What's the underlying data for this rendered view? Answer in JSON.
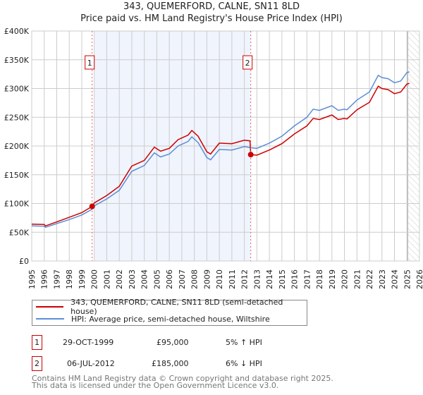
{
  "header": {
    "title": "343, QUEMERFORD, CALNE, SN11 8LD",
    "subtitle": "Price paid vs. HM Land Registry's House Price Index (HPI)"
  },
  "chart_data": {
    "type": "line",
    "xlim": [
      1995,
      2026
    ],
    "ylim": [
      0,
      400000
    ],
    "x_ticks": [
      "1995",
      "1996",
      "1997",
      "1998",
      "1999",
      "2000",
      "2001",
      "2002",
      "2003",
      "2004",
      "2005",
      "2006",
      "2007",
      "2008",
      "2009",
      "2010",
      "2011",
      "2012",
      "2013",
      "2014",
      "2015",
      "2016",
      "2017",
      "2018",
      "2019",
      "2020",
      "2021",
      "2022",
      "2023",
      "2024",
      "2025",
      "2026"
    ],
    "y_ticks": [
      {
        "value": 0,
        "label": "£0"
      },
      {
        "value": 50000,
        "label": "£50K"
      },
      {
        "value": 100000,
        "label": "£100K"
      },
      {
        "value": 150000,
        "label": "£150K"
      },
      {
        "value": 200000,
        "label": "£200K"
      },
      {
        "value": 250000,
        "label": "£250K"
      },
      {
        "value": 300000,
        "label": "£300K"
      },
      {
        "value": 350000,
        "label": "£350K"
      },
      {
        "value": 400000,
        "label": "£400K"
      }
    ],
    "grid": true,
    "shaded_period": [
      2000.0,
      2012.5
    ],
    "future_hatch_from": 2025.05,
    "series": [
      {
        "name": "343, QUEMERFORD, CALNE, SN11 8LD (semi-detached house)",
        "color": "#cc0000",
        "x": [
          1995,
          1996,
          1996.1,
          1997,
          1998,
          1999,
          1999.83,
          2000,
          2001,
          2002,
          2003,
          2004,
          2004.8,
          2005.3,
          2006,
          2006.7,
          2007.5,
          2007.8,
          2008.3,
          2009,
          2009.3,
          2010,
          2011,
          2012,
          2012.45,
          2012.51,
          2013,
          2014,
          2015,
          2016,
          2017,
          2017.5,
          2018,
          2019,
          2019.5,
          2020,
          2020.2,
          2021,
          2022,
          2022.7,
          2023,
          2023.5,
          2024,
          2024.5,
          2025,
          2025.2
        ],
        "y": [
          64000,
          63500,
          61000,
          68000,
          76000,
          84000,
          95000,
          101000,
          114000,
          130000,
          165000,
          175000,
          198000,
          191000,
          196000,
          211000,
          219000,
          227000,
          217000,
          190000,
          186000,
          205000,
          204000,
          210000,
          209000,
          185000,
          184000,
          193000,
          204000,
          221000,
          235000,
          248000,
          246000,
          254000,
          246000,
          248000,
          247000,
          263000,
          276000,
          304000,
          300000,
          298000,
          291000,
          294000,
          308000,
          309000
        ]
      },
      {
        "name": "HPI: Average price, semi-detached house, Wiltshire",
        "color": "#5b8fd4",
        "x": [
          1995,
          1996,
          1996.1,
          1997,
          1998,
          1999,
          1999.83,
          2000,
          2001,
          2002,
          2003,
          2004,
          2004.8,
          2005.3,
          2006,
          2006.7,
          2007.5,
          2007.8,
          2008.3,
          2009,
          2009.3,
          2010,
          2011,
          2012,
          2012.5,
          2013,
          2014,
          2015,
          2016,
          2017,
          2017.5,
          2018,
          2019,
          2019.5,
          2020,
          2020.2,
          2021,
          2022,
          2022.7,
          2023,
          2023.5,
          2024,
          2024.5,
          2025,
          2025.2
        ],
        "y": [
          61000,
          60500,
          58500,
          65000,
          72000,
          80000,
          90000,
          96000,
          108000,
          123000,
          156000,
          166000,
          188000,
          181000,
          186000,
          200000,
          208000,
          216000,
          206000,
          180000,
          176000,
          194000,
          193000,
          199000,
          197000,
          196000,
          205000,
          217000,
          235000,
          250000,
          264000,
          262000,
          270000,
          262000,
          264000,
          263000,
          280000,
          294000,
          323000,
          319000,
          317000,
          310000,
          313000,
          328000,
          329000
        ]
      }
    ],
    "markers": [
      {
        "label": "1",
        "x": 1999.83,
        "y": 95000
      },
      {
        "label": "2",
        "x": 2012.51,
        "y": 185000
      }
    ]
  },
  "legend": {
    "items": [
      {
        "label": "343, QUEMERFORD, CALNE, SN11 8LD (semi-detached house)",
        "color": "#cc0000"
      },
      {
        "label": "HPI: Average price, semi-detached house, Wiltshire",
        "color": "#5b8fd4"
      }
    ]
  },
  "transactions": [
    {
      "num": "1",
      "date": "29-OCT-1999",
      "price": "£95,000",
      "hpi": "5% ↑ HPI"
    },
    {
      "num": "2",
      "date": "06-JUL-2012",
      "price": "£185,000",
      "hpi": "6% ↓ HPI"
    }
  ],
  "footer": {
    "line1": "Contains HM Land Registry data © Crown copyright and database right 2025.",
    "line2": "This data is licensed under the Open Government Licence v3.0."
  }
}
